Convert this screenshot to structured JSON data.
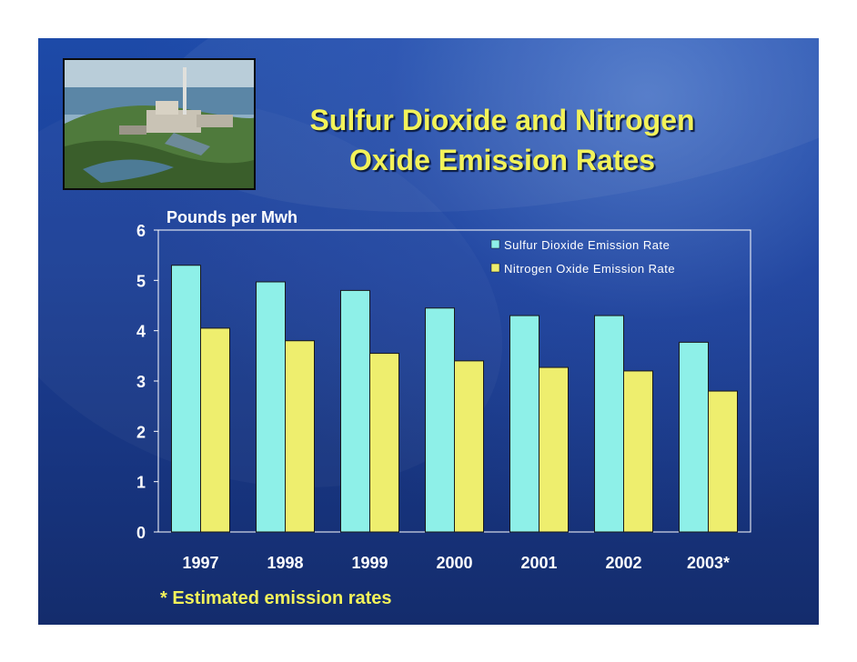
{
  "slide": {
    "title_line1": "Sulfur Dioxide and Nitrogen",
    "title_line2": "Oxide Emission Rates",
    "footnote": "* Estimated emission rates",
    "colors": {
      "background": "#1c3f95",
      "title": "#f2f25a",
      "text": "#ffffff"
    }
  },
  "chart_data": {
    "type": "bar",
    "title": "Sulfur Dioxide and Nitrogen Oxide Emission Rates",
    "ylabel": "Pounds per Mwh",
    "xlabel": "",
    "categories": [
      "1997",
      "1998",
      "1999",
      "2000",
      "2001",
      "2002",
      "2003*"
    ],
    "ylim": [
      0,
      6
    ],
    "yticks": [
      0,
      1,
      2,
      3,
      4,
      5,
      6
    ],
    "grid": false,
    "legend_position": "top-right",
    "series": [
      {
        "name": "Sulfur Dioxide Emission Rate",
        "color": "#8ef0e8",
        "values": [
          5.3,
          4.97,
          4.8,
          4.45,
          4.3,
          4.3,
          3.77
        ]
      },
      {
        "name": "Nitrogen Oxide Emission Rate",
        "color": "#eeee6e",
        "values": [
          4.05,
          3.8,
          3.55,
          3.4,
          3.27,
          3.2,
          2.8
        ]
      }
    ]
  }
}
